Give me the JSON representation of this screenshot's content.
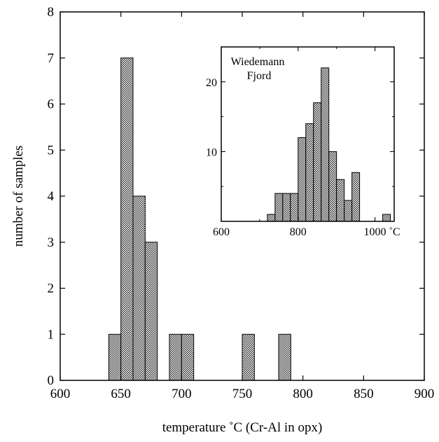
{
  "chart_data": [
    {
      "type": "bar",
      "xlabel": "temperature ˚C (Cr-Al in opx)",
      "ylabel": "number of samples",
      "xlim": [
        600,
        900
      ],
      "ylim": [
        0,
        8
      ],
      "xticks": [
        600,
        650,
        700,
        750,
        800,
        850,
        900
      ],
      "yticks": [
        0,
        1,
        2,
        3,
        4,
        5,
        6,
        7,
        8
      ],
      "bin_width": 10,
      "bins": [
        {
          "x0": 640,
          "x1": 650,
          "value": 1
        },
        {
          "x0": 650,
          "x1": 660,
          "value": 7
        },
        {
          "x0": 660,
          "x1": 670,
          "value": 4
        },
        {
          "x0": 670,
          "x1": 680,
          "value": 3
        },
        {
          "x0": 690,
          "x1": 700,
          "value": 1
        },
        {
          "x0": 700,
          "x1": 710,
          "value": 1
        },
        {
          "x0": 750,
          "x1": 760,
          "value": 1
        },
        {
          "x0": 780,
          "x1": 790,
          "value": 1
        }
      ],
      "grid": false
    },
    {
      "type": "bar",
      "title": "Wiedemann Fjord",
      "title_lines": [
        "Wiedemann",
        "Fjord"
      ],
      "xlim": [
        600,
        1050
      ],
      "ylim": [
        0,
        25
      ],
      "xticks": [
        600,
        800
      ],
      "xtick_labels": [
        "600",
        "800",
        "1000 ˚C"
      ],
      "xtick_values": [
        600,
        800,
        1000
      ],
      "xticks_minor": [
        700,
        900
      ],
      "yticks": [
        10,
        20
      ],
      "ytick_labels": [
        "10",
        "20"
      ],
      "ytick_minor": [
        5,
        15
      ],
      "bin_width": 20,
      "bins": [
        {
          "x0": 720,
          "x1": 740,
          "value": 1
        },
        {
          "x0": 740,
          "x1": 760,
          "value": 4
        },
        {
          "x0": 760,
          "x1": 780,
          "value": 4
        },
        {
          "x0": 780,
          "x1": 800,
          "value": 4
        },
        {
          "x0": 800,
          "x1": 820,
          "value": 12
        },
        {
          "x0": 820,
          "x1": 840,
          "value": 14
        },
        {
          "x0": 840,
          "x1": 860,
          "value": 17
        },
        {
          "x0": 860,
          "x1": 880,
          "value": 22
        },
        {
          "x0": 880,
          "x1": 900,
          "value": 10
        },
        {
          "x0": 900,
          "x1": 920,
          "value": 6
        },
        {
          "x0": 920,
          "x1": 940,
          "value": 3
        },
        {
          "x0": 940,
          "x1": 960,
          "value": 7
        },
        {
          "x0": 1020,
          "x1": 1040,
          "value": 1
        }
      ],
      "grid": false
    }
  ]
}
